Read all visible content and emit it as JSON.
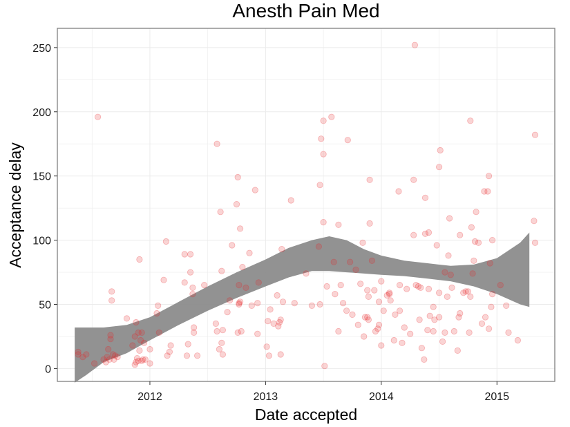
{
  "chart_data": {
    "type": "scatter",
    "title": "Anesth Pain Med",
    "xlabel": "Date accepted",
    "ylabel": "Acceptance delay",
    "x_ticks": [
      "2012",
      "2013",
      "2014",
      "2015"
    ],
    "y_ticks": [
      "0",
      "50",
      "100",
      "150",
      "200",
      "250"
    ],
    "xlim": [
      2011.2,
      2015.5
    ],
    "ylim": [
      -10,
      265
    ],
    "grid": true,
    "legend": "none",
    "colors": {
      "points": "#e8262a",
      "ribbon": "#8c8c8c",
      "grid": "#ebebeb",
      "frame": "#7f7f7f"
    },
    "points": [
      [
        2011.38,
        13
      ],
      [
        2011.38,
        11
      ],
      [
        2011.42,
        9
      ],
      [
        2011.45,
        11
      ],
      [
        2011.52,
        4
      ],
      [
        2011.55,
        196
      ],
      [
        2011.6,
        7
      ],
      [
        2011.62,
        5
      ],
      [
        2011.63,
        9
      ],
      [
        2011.64,
        15
      ],
      [
        2011.65,
        7
      ],
      [
        2011.66,
        23
      ],
      [
        2011.66,
        26
      ],
      [
        2011.67,
        60
      ],
      [
        2011.67,
        53
      ],
      [
        2011.68,
        11
      ],
      [
        2011.69,
        7
      ],
      [
        2011.7,
        10
      ],
      [
        2011.72,
        9
      ],
      [
        2011.8,
        39
      ],
      [
        2011.85,
        18
      ],
      [
        2011.87,
        25
      ],
      [
        2011.87,
        3
      ],
      [
        2011.88,
        5
      ],
      [
        2011.88,
        36
      ],
      [
        2011.89,
        8
      ],
      [
        2011.9,
        28
      ],
      [
        2011.9,
        6
      ],
      [
        2011.91,
        85
      ],
      [
        2011.91,
        14
      ],
      [
        2011.92,
        22
      ],
      [
        2011.93,
        28
      ],
      [
        2011.93,
        6
      ],
      [
        2011.94,
        7
      ],
      [
        2011.95,
        20
      ],
      [
        2011.96,
        7
      ],
      [
        2012.0,
        15
      ],
      [
        2012.0,
        4
      ],
      [
        2012.06,
        43
      ],
      [
        2012.07,
        49
      ],
      [
        2012.08,
        28
      ],
      [
        2012.12,
        69
      ],
      [
        2012.14,
        99
      ],
      [
        2012.15,
        10
      ],
      [
        2012.17,
        13
      ],
      [
        2012.18,
        18
      ],
      [
        2012.3,
        67
      ],
      [
        2012.3,
        89
      ],
      [
        2012.32,
        10
      ],
      [
        2012.33,
        19
      ],
      [
        2012.35,
        89
      ],
      [
        2012.35,
        75
      ],
      [
        2012.37,
        63
      ],
      [
        2012.37,
        58
      ],
      [
        2012.38,
        28
      ],
      [
        2012.38,
        32
      ],
      [
        2012.41,
        10
      ],
      [
        2012.47,
        65
      ],
      [
        2012.57,
        35
      ],
      [
        2012.58,
        29
      ],
      [
        2012.58,
        175
      ],
      [
        2012.6,
        15
      ],
      [
        2012.61,
        122
      ],
      [
        2012.62,
        76
      ],
      [
        2012.62,
        20
      ],
      [
        2012.63,
        11
      ],
      [
        2012.63,
        30
      ],
      [
        2012.67,
        44
      ],
      [
        2012.69,
        53
      ],
      [
        2012.71,
        96
      ],
      [
        2012.75,
        128
      ],
      [
        2012.76,
        149
      ],
      [
        2012.76,
        28
      ],
      [
        2012.77,
        65
      ],
      [
        2012.77,
        50
      ],
      [
        2012.77,
        51
      ],
      [
        2012.78,
        109
      ],
      [
        2012.78,
        52
      ],
      [
        2012.79,
        29
      ],
      [
        2012.8,
        79
      ],
      [
        2012.83,
        63
      ],
      [
        2012.86,
        90
      ],
      [
        2012.88,
        49
      ],
      [
        2012.91,
        139
      ],
      [
        2012.93,
        27
      ],
      [
        2012.93,
        51
      ],
      [
        2012.94,
        67
      ],
      [
        2013.01,
        17
      ],
      [
        2013.02,
        37
      ],
      [
        2013.03,
        10
      ],
      [
        2013.04,
        46
      ],
      [
        2013.07,
        35
      ],
      [
        2013.1,
        57
      ],
      [
        2013.11,
        33
      ],
      [
        2013.12,
        36
      ],
      [
        2013.13,
        38
      ],
      [
        2013.13,
        11
      ],
      [
        2013.14,
        93
      ],
      [
        2013.15,
        52
      ],
      [
        2013.22,
        131
      ],
      [
        2013.25,
        51
      ],
      [
        2013.35,
        74
      ],
      [
        2013.4,
        49
      ],
      [
        2013.46,
        95
      ],
      [
        2013.47,
        50
      ],
      [
        2013.47,
        143
      ],
      [
        2013.48,
        179
      ],
      [
        2013.5,
        114
      ],
      [
        2013.5,
        167
      ],
      [
        2013.5,
        193
      ],
      [
        2013.51,
        2
      ],
      [
        2013.53,
        64
      ],
      [
        2013.57,
        196
      ],
      [
        2013.59,
        83
      ],
      [
        2013.6,
        58
      ],
      [
        2013.63,
        29
      ],
      [
        2013.63,
        112
      ],
      [
        2013.65,
        65
      ],
      [
        2013.67,
        51
      ],
      [
        2013.7,
        45
      ],
      [
        2013.71,
        178
      ],
      [
        2013.73,
        83
      ],
      [
        2013.75,
        42
      ],
      [
        2013.78,
        77
      ],
      [
        2013.8,
        34
      ],
      [
        2013.82,
        66
      ],
      [
        2013.84,
        98
      ],
      [
        2013.85,
        25
      ],
      [
        2013.86,
        40
      ],
      [
        2013.88,
        40
      ],
      [
        2013.88,
        61
      ],
      [
        2013.89,
        56
      ],
      [
        2013.89,
        38
      ],
      [
        2013.9,
        113
      ],
      [
        2013.9,
        147
      ],
      [
        2013.92,
        84
      ],
      [
        2013.94,
        61
      ],
      [
        2013.95,
        29
      ],
      [
        2013.97,
        31
      ],
      [
        2013.98,
        34
      ],
      [
        2013.98,
        52
      ],
      [
        2014.0,
        68
      ],
      [
        2014.0,
        18
      ],
      [
        2014.02,
        45
      ],
      [
        2014.05,
        57
      ],
      [
        2014.07,
        59
      ],
      [
        2014.07,
        58
      ],
      [
        2014.08,
        53
      ],
      [
        2014.11,
        22
      ],
      [
        2014.12,
        42
      ],
      [
        2014.15,
        138
      ],
      [
        2014.16,
        65
      ],
      [
        2014.16,
        45
      ],
      [
        2014.18,
        20
      ],
      [
        2014.2,
        32
      ],
      [
        2014.22,
        62
      ],
      [
        2014.25,
        27
      ],
      [
        2014.28,
        104
      ],
      [
        2014.28,
        147
      ],
      [
        2014.29,
        252
      ],
      [
        2014.3,
        65
      ],
      [
        2014.32,
        64
      ],
      [
        2014.33,
        38
      ],
      [
        2014.34,
        63
      ],
      [
        2014.35,
        16
      ],
      [
        2014.37,
        7
      ],
      [
        2014.38,
        105
      ],
      [
        2014.38,
        133
      ],
      [
        2014.4,
        30
      ],
      [
        2014.41,
        106
      ],
      [
        2014.41,
        62
      ],
      [
        2014.42,
        41
      ],
      [
        2014.45,
        48
      ],
      [
        2014.45,
        29
      ],
      [
        2014.46,
        38
      ],
      [
        2014.48,
        96
      ],
      [
        2014.5,
        40
      ],
      [
        2014.5,
        59
      ],
      [
        2014.5,
        157
      ],
      [
        2014.51,
        170
      ],
      [
        2014.53,
        21
      ],
      [
        2014.55,
        75
      ],
      [
        2014.55,
        28
      ],
      [
        2014.57,
        56
      ],
      [
        2014.58,
        88
      ],
      [
        2014.59,
        117
      ],
      [
        2014.6,
        73
      ],
      [
        2014.61,
        63
      ],
      [
        2014.63,
        29
      ],
      [
        2014.66,
        14
      ],
      [
        2014.67,
        40
      ],
      [
        2014.68,
        104
      ],
      [
        2014.68,
        43
      ],
      [
        2014.71,
        59
      ],
      [
        2014.73,
        60
      ],
      [
        2014.75,
        60
      ],
      [
        2014.76,
        28
      ],
      [
        2014.77,
        193
      ],
      [
        2014.77,
        56
      ],
      [
        2014.78,
        110
      ],
      [
        2014.79,
        74
      ],
      [
        2014.8,
        84
      ],
      [
        2014.81,
        99
      ],
      [
        2014.82,
        122
      ],
      [
        2014.84,
        98
      ],
      [
        2014.87,
        35
      ],
      [
        2014.89,
        138
      ],
      [
        2014.9,
        40
      ],
      [
        2014.92,
        138
      ],
      [
        2014.93,
        31
      ],
      [
        2014.93,
        150
      ],
      [
        2014.94,
        82
      ],
      [
        2014.95,
        48
      ],
      [
        2014.96,
        100
      ],
      [
        2014.96,
        58
      ],
      [
        2015.03,
        65
      ],
      [
        2015.08,
        49
      ],
      [
        2015.1,
        28
      ],
      [
        2015.18,
        22
      ],
      [
        2015.32,
        115
      ],
      [
        2015.33,
        98
      ],
      [
        2015.33,
        182
      ]
    ],
    "smooth_upper": [
      [
        2011.35,
        32
      ],
      [
        2011.6,
        32
      ],
      [
        2011.8,
        34
      ],
      [
        2012.0,
        40
      ],
      [
        2012.25,
        52
      ],
      [
        2012.5,
        64
      ],
      [
        2012.75,
        75
      ],
      [
        2013.0,
        85
      ],
      [
        2013.2,
        94
      ],
      [
        2013.4,
        100
      ],
      [
        2013.55,
        103
      ],
      [
        2013.7,
        100
      ],
      [
        2013.85,
        93
      ],
      [
        2014.0,
        88
      ],
      [
        2014.2,
        84
      ],
      [
        2014.4,
        82
      ],
      [
        2014.6,
        80
      ],
      [
        2014.8,
        81
      ],
      [
        2015.0,
        86
      ],
      [
        2015.2,
        98
      ],
      [
        2015.28,
        106
      ]
    ],
    "smooth_lower": [
      [
        2011.35,
        -11
      ],
      [
        2011.45,
        -5
      ],
      [
        2011.6,
        5
      ],
      [
        2011.8,
        12
      ],
      [
        2012.0,
        22
      ],
      [
        2012.25,
        34
      ],
      [
        2012.5,
        45
      ],
      [
        2012.75,
        55
      ],
      [
        2013.0,
        64
      ],
      [
        2013.2,
        71
      ],
      [
        2013.4,
        76
      ],
      [
        2013.55,
        76
      ],
      [
        2013.7,
        75
      ],
      [
        2013.85,
        74
      ],
      [
        2014.0,
        73
      ],
      [
        2014.2,
        72
      ],
      [
        2014.4,
        70
      ],
      [
        2014.6,
        68
      ],
      [
        2014.8,
        64
      ],
      [
        2015.0,
        58
      ],
      [
        2015.2,
        50
      ],
      [
        2015.28,
        48
      ]
    ]
  }
}
